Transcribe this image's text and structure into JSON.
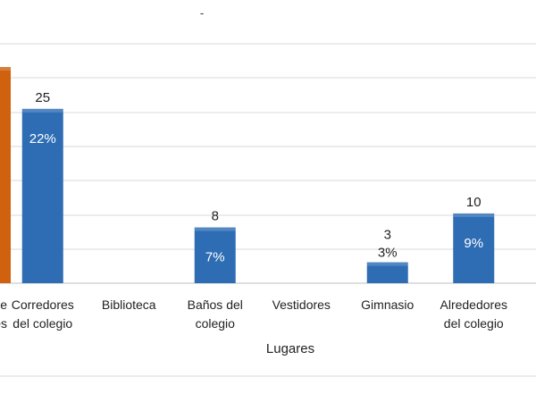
{
  "chart_data": {
    "type": "bar",
    "top_mark": "-",
    "xlabel": "Lugares",
    "ylabel": "",
    "ylim": [
      0,
      31
    ],
    "grid": true,
    "legend": "none",
    "colors": {
      "default_bar": "#2E6DB4",
      "highlight_bar": "#D0620F",
      "gridline": "#D9D9D9",
      "text": "#222222",
      "pct_text_inside": "#ffffff",
      "pct_text_outside": "#222222"
    },
    "categories": [
      {
        "lines": [
          "de",
          "es"
        ],
        "count": 31,
        "count_text": "",
        "pct_text": "",
        "highlight": true
      },
      {
        "lines": [
          "Corredores",
          "del colegio"
        ],
        "count": 25,
        "count_text": "25",
        "pct_text": "22%",
        "highlight": false
      },
      {
        "lines": [
          "Biblioteca"
        ],
        "count": 0,
        "count_text": "",
        "pct_text": "",
        "highlight": false
      },
      {
        "lines": [
          "Baños del",
          "colegio"
        ],
        "count": 8,
        "count_text": "8",
        "pct_text": "7%",
        "highlight": false
      },
      {
        "lines": [
          "Vestidores"
        ],
        "count": 0,
        "count_text": "",
        "pct_text": "",
        "highlight": false
      },
      {
        "lines": [
          "Gimnasio"
        ],
        "count": 3,
        "count_text": "3",
        "pct_text": "3%",
        "highlight": false
      },
      {
        "lines": [
          "Alrededores",
          "del colegio"
        ],
        "count": 10,
        "count_text": "10",
        "pct_text": "9%",
        "highlight": false
      }
    ]
  }
}
